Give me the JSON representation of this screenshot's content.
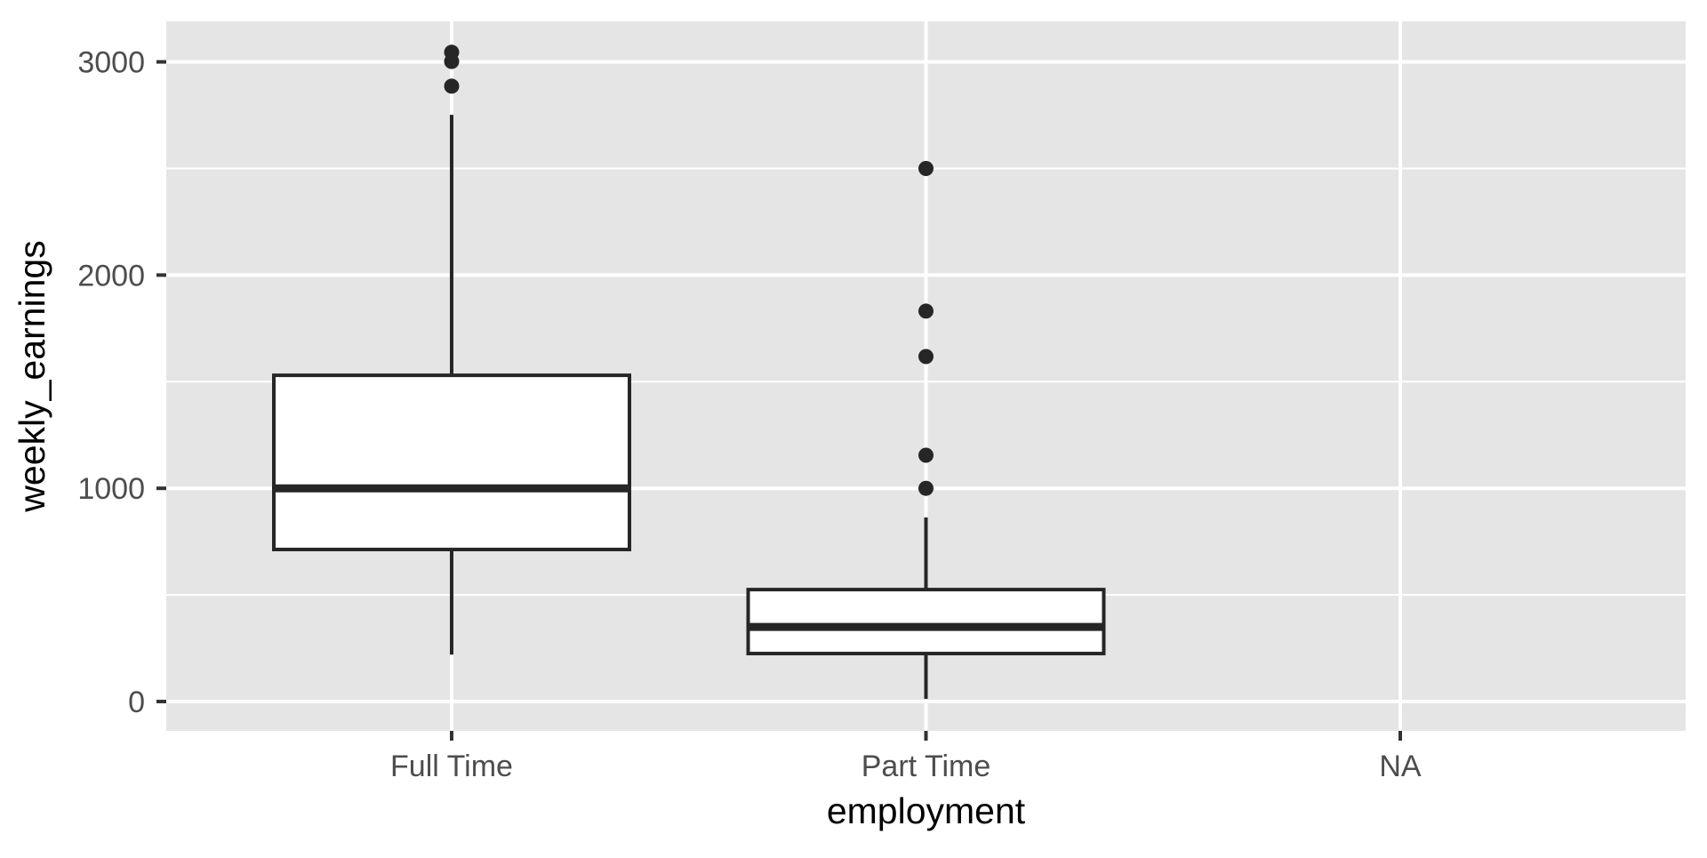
{
  "chart_data": {
    "type": "boxplot",
    "title": "",
    "xlabel": "employment",
    "ylabel": "weekly_earnings",
    "categories": [
      "Full Time",
      "Part Time",
      "NA"
    ],
    "ylim": [
      -170,
      3230
    ],
    "yticks": [
      0,
      1000,
      2000,
      3000
    ],
    "y_minor_gridlines": [
      500,
      1500,
      2500
    ],
    "grid": true,
    "legend": "none",
    "theme": "ggplot2 theme_gray",
    "boxes": [
      {
        "category": "Full Time",
        "lower_whisker": 220,
        "q1": 713,
        "median": 1000,
        "q3": 1530,
        "upper_whisker": 2752,
        "outliers": [
          2886,
          3002,
          3045
        ]
      },
      {
        "category": "Part Time",
        "lower_whisker": 12,
        "q1": 225,
        "median": 350,
        "q3": 525,
        "upper_whisker": 863,
        "outliers": [
          1000,
          1155,
          1618,
          1831,
          2500
        ]
      },
      {
        "category": "NA",
        "lower_whisker": null,
        "q1": null,
        "median": null,
        "q3": null,
        "upper_whisker": null,
        "outliers": []
      }
    ]
  },
  "colors": {
    "panel_background": "#e5e5e5",
    "gridline": "#ffffff",
    "box_fill": "#ffffff",
    "box_line": "#262626",
    "outlier": "#262626",
    "tick_label": "#4d4d4d",
    "tick_mark": "#333333",
    "axis_title": "#000000"
  }
}
